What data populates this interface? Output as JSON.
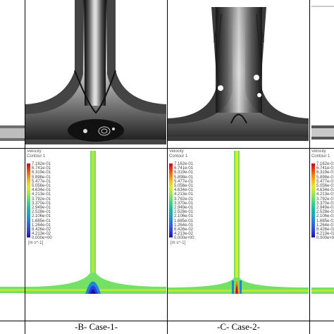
{
  "legend": {
    "title": "Velocity",
    "subtitle": "Contour 1",
    "ticks": [
      "7.162e-01",
      "6.741e-01",
      "6.319e-01",
      "5.898e-01",
      "5.477e-01",
      "5.056e-01",
      "4.634e-01",
      "4.213e-01",
      "3.792e-01",
      "3.370e-01",
      "2.949e-01",
      "2.528e-01",
      "2.106e-01",
      "1.685e-01",
      "1.264e-01",
      "8.426e-02",
      "4.213e-02",
      "0.000e+00"
    ],
    "unit": "[m s^-1]",
    "colors": [
      "#c8002a",
      "#e83a10",
      "#f47f0a",
      "#f8b51a",
      "#e7e91f",
      "#b4e93c",
      "#74e066",
      "#38d28a",
      "#1abc9c",
      "#18a7c0",
      "#1f86d6",
      "#2d60e0",
      "#2f3adb",
      "#1a10b0"
    ]
  },
  "captions": {
    "case1": "-B- Case-1-",
    "case2": "-C- Case-2-"
  }
}
